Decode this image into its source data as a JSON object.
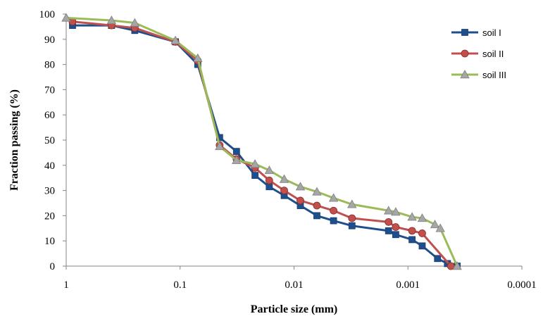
{
  "chart_data": {
    "type": "line",
    "xlabel": "Particle size (mm)",
    "ylabel": "Fraction passing (%)",
    "x_scale": "log",
    "x_reversed": true,
    "xlim": [
      1,
      0.0001
    ],
    "ylim": [
      0,
      100
    ],
    "x_ticks": [
      1,
      0.1,
      0.01,
      0.001,
      0.0001
    ],
    "x_tick_labels": [
      "1",
      "0.1",
      "0.01",
      "0.001",
      "0.0001"
    ],
    "y_ticks": [
      0,
      10,
      20,
      30,
      40,
      50,
      60,
      70,
      80,
      90,
      100
    ],
    "y_tick_labels": [
      "0",
      "10",
      "20",
      "30",
      "40",
      "50",
      "60",
      "70",
      "80",
      "90",
      "100"
    ],
    "grid": false,
    "legend_position": "right",
    "series": [
      {
        "name": "soil I",
        "color": "#1F4E8C",
        "marker": "square",
        "points": [
          [
            0.88,
            95.5
          ],
          [
            0.4,
            95.5
          ],
          [
            0.25,
            93.5
          ],
          [
            0.11,
            89
          ],
          [
            0.07,
            80
          ],
          [
            0.045,
            51
          ],
          [
            0.032,
            45.5
          ],
          [
            0.022,
            36
          ],
          [
            0.0165,
            31.5
          ],
          [
            0.0122,
            28
          ],
          [
            0.0088,
            24
          ],
          [
            0.0063,
            20
          ],
          [
            0.0045,
            18
          ],
          [
            0.0031,
            16
          ],
          [
            0.00148,
            14
          ],
          [
            0.00128,
            12.5
          ],
          [
            0.00092,
            10.5
          ],
          [
            0.00075,
            8
          ],
          [
            0.00055,
            3
          ],
          [
            0.00045,
            1
          ],
          [
            0.00037,
            0
          ]
        ]
      },
      {
        "name": "soil II",
        "color": "#C0504D",
        "marker": "circle",
        "points": [
          [
            0.88,
            97
          ],
          [
            0.4,
            95.5
          ],
          [
            0.25,
            94.5
          ],
          [
            0.11,
            89
          ],
          [
            0.07,
            81.5
          ],
          [
            0.045,
            48
          ],
          [
            0.032,
            42.5
          ],
          [
            0.022,
            39
          ],
          [
            0.0165,
            34
          ],
          [
            0.0122,
            30
          ],
          [
            0.0088,
            26
          ],
          [
            0.0063,
            24
          ],
          [
            0.0045,
            22
          ],
          [
            0.0031,
            19
          ],
          [
            0.00148,
            17.5
          ],
          [
            0.00128,
            15.5
          ],
          [
            0.00092,
            14
          ],
          [
            0.00075,
            13
          ],
          [
            0.00042,
            0
          ]
        ]
      },
      {
        "name": "soil III",
        "color": "#9BBB59",
        "marker": "triangle",
        "points": [
          [
            1,
            98.5
          ],
          [
            0.4,
            97.5
          ],
          [
            0.25,
            96.5
          ],
          [
            0.11,
            89.5
          ],
          [
            0.07,
            82.5
          ],
          [
            0.045,
            47.5
          ],
          [
            0.032,
            42
          ],
          [
            0.022,
            40.5
          ],
          [
            0.0165,
            38
          ],
          [
            0.0122,
            34.5
          ],
          [
            0.0088,
            31.5
          ],
          [
            0.0063,
            29.5
          ],
          [
            0.0045,
            27
          ],
          [
            0.0031,
            24.5
          ],
          [
            0.00148,
            22
          ],
          [
            0.00128,
            21.5
          ],
          [
            0.00092,
            19.5
          ],
          [
            0.00075,
            19
          ],
          [
            0.00058,
            16.5
          ],
          [
            0.00052,
            15
          ],
          [
            0.00037,
            0
          ]
        ]
      }
    ]
  }
}
